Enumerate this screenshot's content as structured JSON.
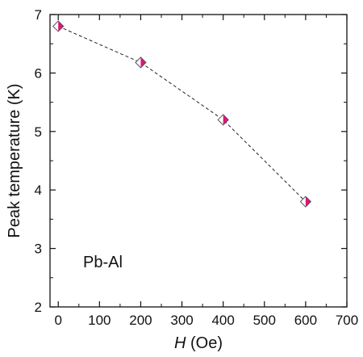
{
  "chart_data": {
    "type": "scatter",
    "title": "",
    "xlabel": "H (Oe)",
    "xlabel_italic": "H",
    "xlabel_rest": " (Oe)",
    "ylabel": "Peak temperature (K)",
    "xlim": [
      -20,
      700
    ],
    "ylim": [
      2,
      7
    ],
    "xticks": [
      0,
      100,
      200,
      300,
      400,
      500,
      600,
      700
    ],
    "yticks": [
      2,
      3,
      4,
      5,
      6,
      7
    ],
    "grid": false,
    "annotation": "Pb-Al",
    "series": [
      {
        "marker": "half-filled-diamond",
        "color": "#e0127a",
        "line_style": "dashed",
        "points": [
          {
            "x": 0,
            "y": 6.8
          },
          {
            "x": 200,
            "y": 6.18
          },
          {
            "x": 400,
            "y": 5.2
          },
          {
            "x": 600,
            "y": 3.8
          }
        ]
      }
    ]
  }
}
